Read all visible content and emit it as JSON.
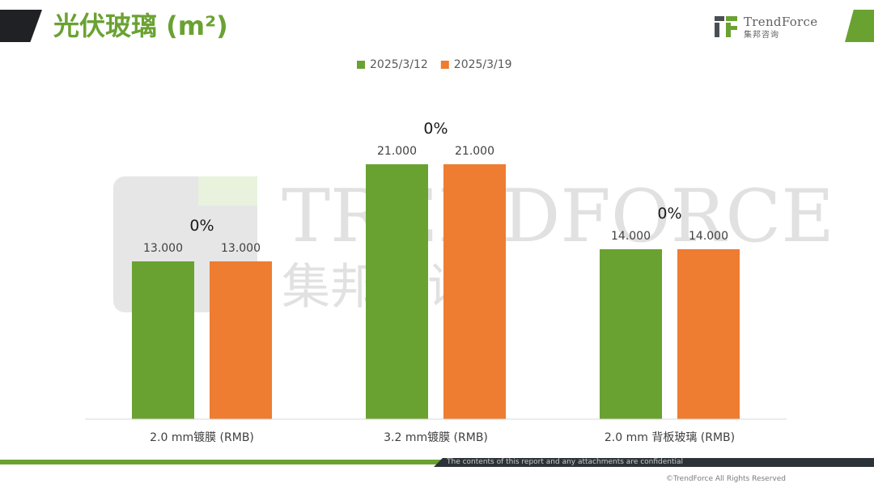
{
  "title": "光伏玻璃 (m²)",
  "logo": {
    "name": "TrendForce",
    "subtitle": "集邦咨询"
  },
  "footer": {
    "confidential": "The contents of this report and any attachments are confidential",
    "copyright": "©TrendForce All Rights Reserved"
  },
  "watermark": {
    "name": "TRENDFORCE",
    "subtitle": "集邦咨询"
  },
  "colors": {
    "accent_green": "#6aa232",
    "accent_orange": "#ee7c31",
    "dark": "#1f2125"
  },
  "chart_data": {
    "type": "bar",
    "categories": [
      "2.0 mm镀膜 (RMB)",
      "3.2 mm镀膜 (RMB)",
      "2.0 mm 背板玻璃 (RMB)"
    ],
    "series": [
      {
        "name": "2025/3/12",
        "color": "#6aa232",
        "values": [
          13.0,
          21.0,
          14.0
        ],
        "labels": [
          "13.000",
          "21.000",
          "14.000"
        ]
      },
      {
        "name": "2025/3/19",
        "color": "#ee7c31",
        "values": [
          13.0,
          21.0,
          14.0
        ],
        "labels": [
          "13.000",
          "21.000",
          "14.000"
        ]
      }
    ],
    "change_labels": [
      "0%",
      "0%",
      "0%"
    ],
    "ylim": [
      0,
      25
    ],
    "grid": false,
    "legend": "top-center"
  }
}
